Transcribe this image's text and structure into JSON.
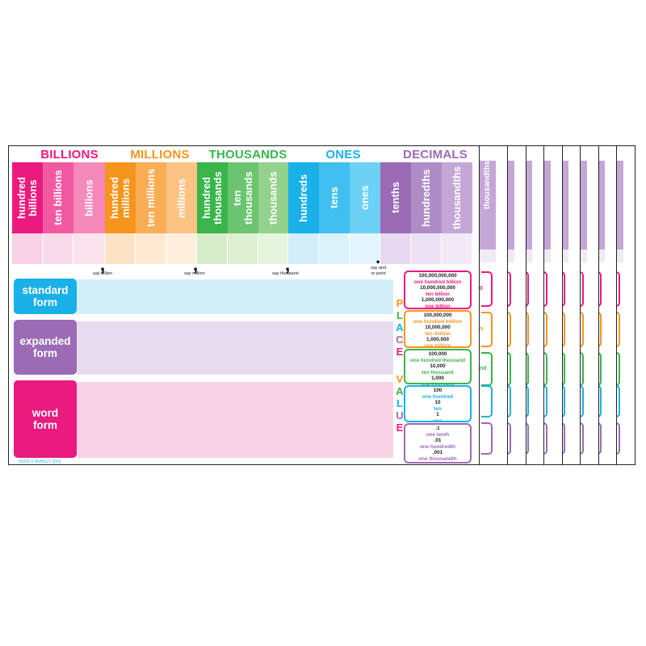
{
  "groups": {
    "billions": "BILLIONS",
    "millions": "MILLIONS",
    "thousands": "THOUSANDS",
    "ones": "ONES",
    "decimals": "DECIMALS"
  },
  "columns": [
    {
      "label": "hundred billions",
      "color": "#ea1a7f",
      "light": "#f7d2e3"
    },
    {
      "label": "ten billions",
      "color": "#f15aa1",
      "light": "#f9dbe9"
    },
    {
      "label": "billions",
      "color": "#f589ba",
      "light": "#fbe3ee"
    },
    {
      "label": "hundred millions",
      "color": "#f7941d",
      "light": "#fde3c6"
    },
    {
      "label": "ten millions",
      "color": "#f9ad55",
      "light": "#fde9d1"
    },
    {
      "label": "millions",
      "color": "#fbc384",
      "light": "#feefdc"
    },
    {
      "label": "hundred thousands",
      "color": "#39b54a",
      "light": "#d6edc9"
    },
    {
      "label": "ten thousands",
      "color": "#6cc46f",
      "light": "#ddf0d2"
    },
    {
      "label": "thousands",
      "color": "#93d18c",
      "light": "#e5f4dc"
    },
    {
      "label": "hundreds",
      "color": "#1ab0e8",
      "light": "#d2eefa"
    },
    {
      "label": "tens",
      "color": "#3fc0f0",
      "light": "#dbf2fb"
    },
    {
      "label": "ones",
      "color": "#6dd0f5",
      "light": "#e3f5fc"
    },
    {
      "label": "tenths",
      "color": "#9b6bb5",
      "light": "#e7daf0"
    },
    {
      "label": "hundredths",
      "color": "#b08cc6",
      "light": "#ece2f3"
    },
    {
      "label": "thousandths",
      "color": "#c4a7d6",
      "light": "#f1e9f6"
    }
  ],
  "separators": {
    "comma": ",",
    "point": "•",
    "say_billion": "say billion",
    "say_million": "say million",
    "say_thousand": "say thousand",
    "say_and_1": "say and",
    "say_and_2": "or point"
  },
  "forms": {
    "standard_1": "standard",
    "standard_2": "form",
    "expanded_1": "expanded",
    "expanded_2": "form",
    "word_1": "word",
    "word_2": "form"
  },
  "place_value_title": [
    "P",
    "L",
    "A",
    "C",
    "E",
    "V",
    "A",
    "L",
    "U",
    "E"
  ],
  "place_value_boxes": [
    {
      "border": "#ea1a7f",
      "lines": [
        {
          "t": "100,000,000,000",
          "c": "#222222"
        },
        {
          "t": "one hundred billion",
          "c": "#ea1a7f"
        },
        {
          "t": "10,000,000,000",
          "c": "#222222"
        },
        {
          "t": "ten billion",
          "c": "#ea1a7f"
        },
        {
          "t": "1,000,000,000",
          "c": "#222222"
        },
        {
          "t": "one billion",
          "c": "#ea1a7f"
        }
      ]
    },
    {
      "border": "#f7941d",
      "lines": [
        {
          "t": "100,000,000",
          "c": "#222222"
        },
        {
          "t": "one hundred million",
          "c": "#f7941d"
        },
        {
          "t": "10,000,000",
          "c": "#222222"
        },
        {
          "t": "ten million",
          "c": "#f7941d"
        },
        {
          "t": "1,000,000",
          "c": "#222222"
        },
        {
          "t": "one million",
          "c": "#f7941d"
        }
      ]
    },
    {
      "border": "#39b54a",
      "lines": [
        {
          "t": "100,000",
          "c": "#222222"
        },
        {
          "t": "one hundred thousand",
          "c": "#39b54a"
        },
        {
          "t": "10,000",
          "c": "#222222"
        },
        {
          "t": "ten thousand",
          "c": "#39b54a"
        },
        {
          "t": "1,000",
          "c": "#222222"
        },
        {
          "t": "one thousand",
          "c": "#39b54a"
        }
      ]
    },
    {
      "border": "#1ab0e8",
      "lines": [
        {
          "t": "100",
          "c": "#222222"
        },
        {
          "t": "one hundred",
          "c": "#1ab0e8"
        },
        {
          "t": "10",
          "c": "#222222"
        },
        {
          "t": "ten",
          "c": "#1ab0e8"
        },
        {
          "t": "1",
          "c": "#222222"
        },
        {
          "t": "one",
          "c": "#1ab0e8"
        }
      ]
    },
    {
      "border": "#9b6bb5",
      "lines": [
        {
          "t": ".1",
          "c": "#222222"
        },
        {
          "t": "one tenth",
          "c": "#9b6bb5"
        },
        {
          "t": ".01",
          "c": "#222222"
        },
        {
          "t": "one hundredth",
          "c": "#9b6bb5"
        },
        {
          "t": ".001",
          "c": "#222222"
        },
        {
          "t": "one thousandth",
          "c": "#9b6bb5"
        }
      ]
    }
  ],
  "copyright": "91025 © ASHLEY 2016",
  "stack_label": "thousandths",
  "stack_tab_fragments": [
    "0",
    "n",
    "nd",
    "",
    ""
  ],
  "colors": {
    "pink": "#ea1a7f",
    "orange": "#f7941d",
    "green": "#39b54a",
    "blue": "#1ab0e8",
    "purple": "#9b6bb5"
  }
}
